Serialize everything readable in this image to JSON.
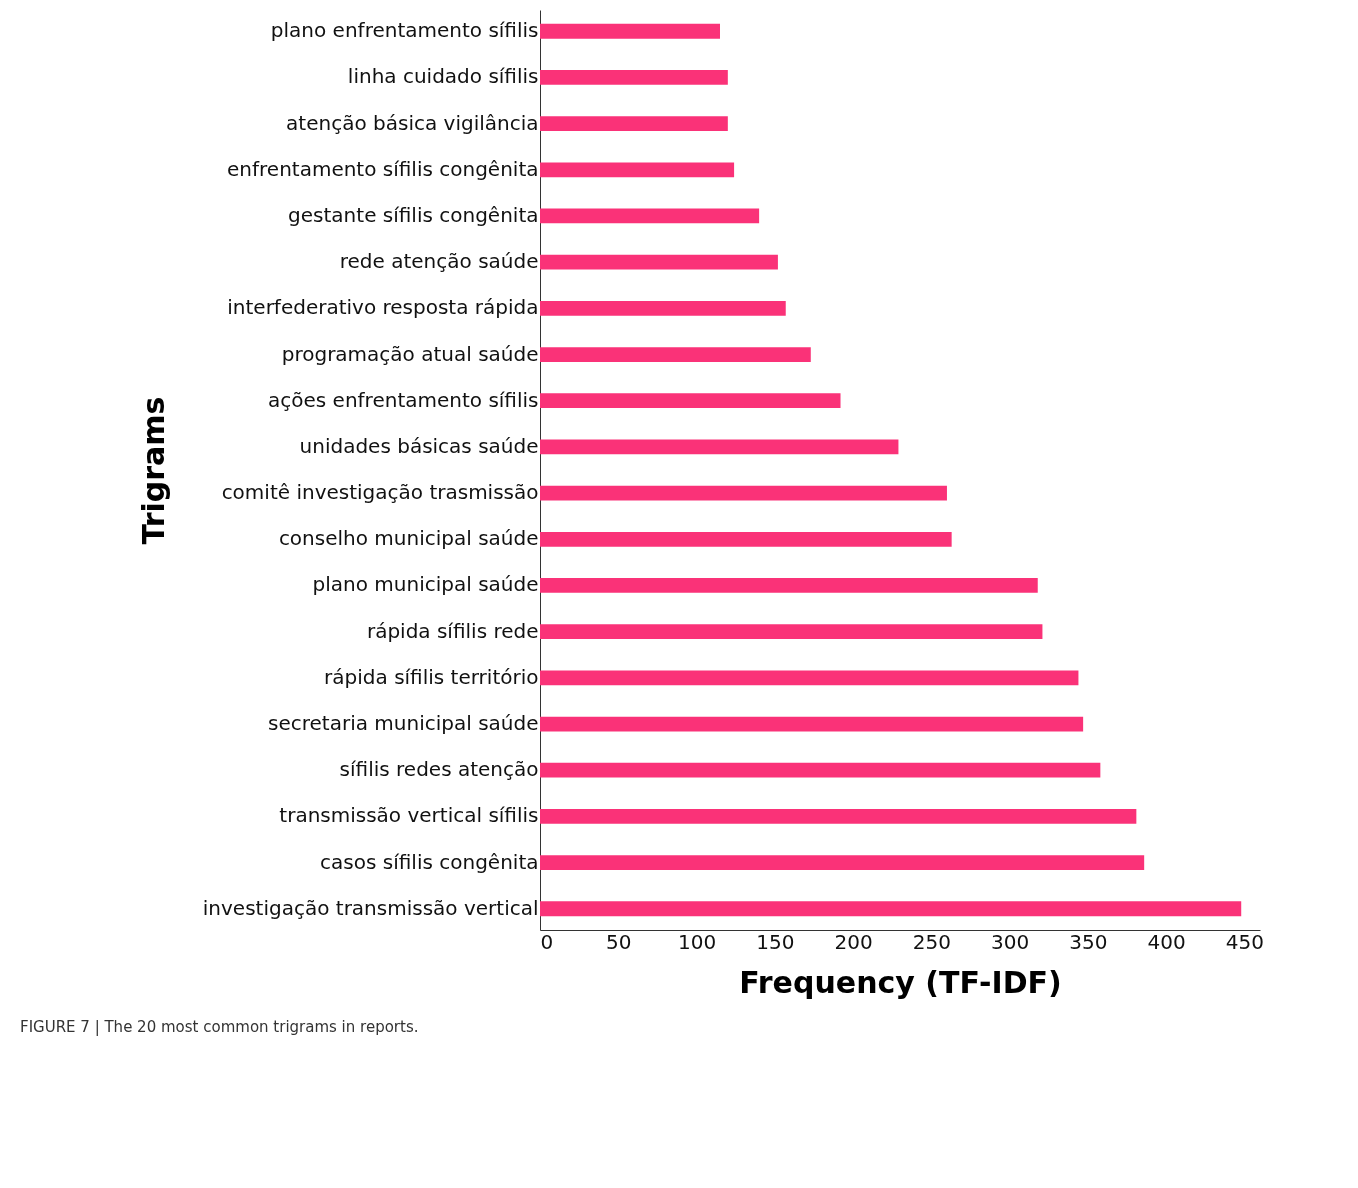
{
  "chart_data": {
    "type": "bar",
    "orientation": "horizontal",
    "xlabel": "Frequency (TF-IDF)",
    "ylabel": "Trigrams",
    "categories": [
      "plano enfrentamento sífilis",
      "linha cuidado sífilis",
      "atenção básica vigilância",
      "enfrentamento sífilis congênita",
      "gestante sífilis congênita",
      "rede atenção saúde",
      "interfederativo resposta rápida",
      "programação atual saúde",
      "ações enfrentamento sífilis",
      "unidades básicas saúde",
      "comitê investigação trasmissão",
      "conselho municipal saúde",
      "plano municipal saúde",
      "rápida sífilis rede",
      "rápida sífilis território",
      "secretaria municipal saúde",
      "sífilis redes atenção",
      "transmissão vertical sífilis",
      "casos sífilis congênita",
      "investigação transmissão vertical"
    ],
    "values": [
      115,
      120,
      120,
      124,
      140,
      152,
      157,
      173,
      192,
      229,
      260,
      263,
      318,
      321,
      344,
      347,
      358,
      381,
      386,
      448
    ],
    "color": "#fa3278",
    "xlim": [
      0,
      460
    ],
    "xticks": [
      0,
      50,
      100,
      150,
      200,
      250,
      300,
      350,
      400,
      450
    ],
    "grid": false,
    "annotations": [
      "FIGURE 7 | The 20 most common trigrams in reports."
    ]
  }
}
